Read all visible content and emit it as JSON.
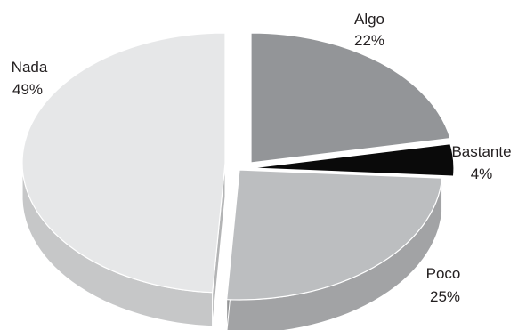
{
  "chart_data": {
    "type": "pie",
    "style": "3d-exploded",
    "title": "",
    "slices": [
      {
        "name": "Algo",
        "value": 22,
        "label": "22%",
        "color": "#939598"
      },
      {
        "name": "Bastante",
        "value": 4,
        "label": "4%",
        "color": "#0a0a0a"
      },
      {
        "name": "Poco",
        "value": 25,
        "label": "25%",
        "color": "#bcbec0"
      },
      {
        "name": "Nada",
        "value": 49,
        "label": "49%",
        "color": "#e6e7e8"
      }
    ],
    "legend": "none",
    "data_labels": "outside"
  }
}
